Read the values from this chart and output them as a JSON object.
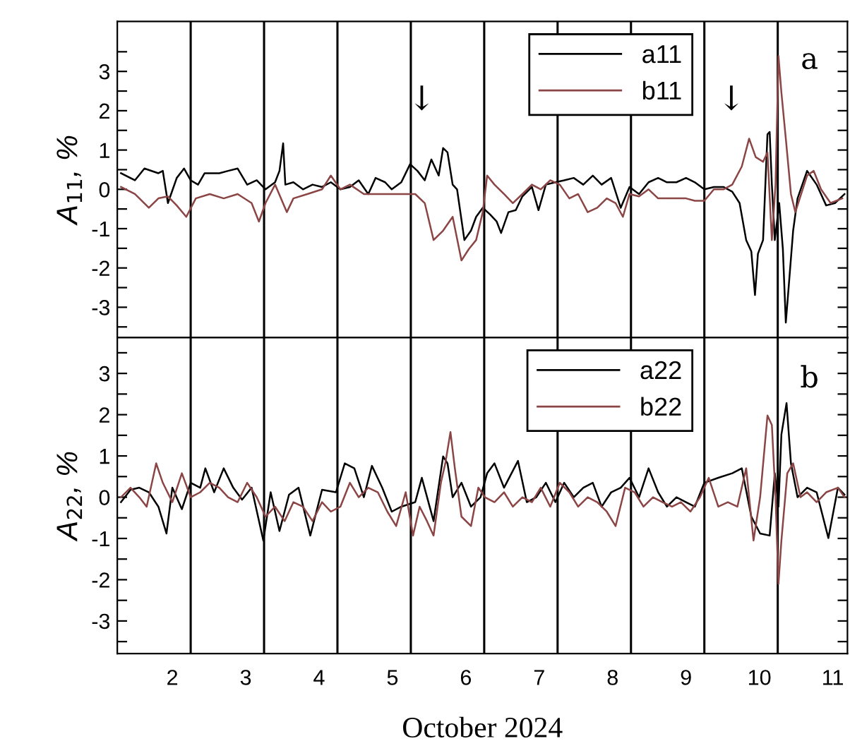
{
  "chart_data": [
    {
      "type": "line",
      "ylabel": "A$_{11}$, %",
      "xlim": [
        1.25,
        11.2
      ],
      "ylim": [
        -3.77,
        4.27
      ],
      "xticks": [
        2,
        3,
        4,
        5,
        6,
        7,
        8,
        9,
        10,
        11
      ],
      "yticks": [
        {
          "value": 3.5,
          "label": null
        },
        3,
        {
          "value": 2.5,
          "label": null
        },
        2,
        {
          "value": 1.5,
          "label": null
        },
        1,
        {
          "value": 0.5,
          "label": null
        },
        0,
        {
          "value": -0.5,
          "label": null
        },
        -1,
        {
          "value": -1.5,
          "label": null
        },
        -2,
        {
          "value": -2.5,
          "label": null
        },
        -3,
        {
          "value": -3.5,
          "label": null
        }
      ],
      "tick_labels": "y",
      "legend": "top right",
      "ref_lines": [
        {
          "axis": "x",
          "value": 2.25,
          "color": "#000000"
        },
        {
          "axis": "x",
          "value": 3.25,
          "color": "#000000"
        },
        {
          "axis": "x",
          "value": 4.25,
          "color": "#000000"
        },
        {
          "axis": "x",
          "value": 5.25,
          "color": "#000000"
        },
        {
          "axis": "x",
          "value": 6.25,
          "color": "#000000"
        },
        {
          "axis": "x",
          "value": 7.25,
          "color": "#000000"
        },
        {
          "axis": "x",
          "value": 8.25,
          "color": "#000000"
        },
        {
          "axis": "x",
          "value": 9.25,
          "color": "#000000"
        },
        {
          "axis": "x",
          "value": 10.25,
          "color": "#000000"
        }
      ],
      "annotations": [
        "↓",
        "↓",
        "a"
      ],
      "series": [
        {
          "name": "a11",
          "color": "#000000",
          "x": [
            1.3,
            1.49,
            1.62,
            1.81,
            1.87,
            1.94,
            2.06,
            2.16,
            2.25,
            2.35,
            2.44,
            2.64,
            2.76,
            2.89,
            3.02,
            3.15,
            3.27,
            3.4,
            3.46,
            3.51,
            3.54,
            3.65,
            3.78,
            3.91,
            4.04,
            4.16,
            4.29,
            4.42,
            4.54,
            4.67,
            4.77,
            4.9,
            4.99,
            5.12,
            5.24,
            5.34,
            5.44,
            5.53,
            5.63,
            5.69,
            5.75,
            5.82,
            5.88,
            5.98,
            6.07,
            6.14,
            6.23,
            6.33,
            6.42,
            6.48,
            6.58,
            6.68,
            6.77,
            6.9,
            6.99,
            7.09,
            7.22,
            7.34,
            7.47,
            7.6,
            7.73,
            7.85,
            7.98,
            8.11,
            8.23,
            8.36,
            8.49,
            8.62,
            8.74,
            8.87,
            9.0,
            9.12,
            9.25,
            9.38,
            9.51,
            9.63,
            9.73,
            9.82,
            9.89,
            9.94,
            9.98,
            10.05,
            10.11,
            10.14,
            10.17,
            10.21,
            10.27,
            10.32,
            10.36,
            10.4,
            10.46,
            10.52,
            10.65,
            10.78,
            10.91,
            11.03,
            11.16
          ],
          "values": [
            0.41,
            0.23,
            0.53,
            0.41,
            0.47,
            -0.35,
            0.29,
            0.53,
            0.23,
            0.12,
            0.41,
            0.41,
            0.47,
            0.53,
            0.12,
            0.23,
            0,
            0.18,
            0.47,
            1.17,
            0.12,
            0.18,
            0,
            0.12,
            0.06,
            0.18,
            0,
            0.06,
            0.23,
            -0.12,
            0.29,
            0.18,
            0,
            0.18,
            0.64,
            0.47,
            0.23,
            0.76,
            0.35,
            1.05,
            0.94,
            0.12,
            0,
            -1.29,
            -1.05,
            -0.7,
            -0.47,
            -0.64,
            -0.82,
            -1.11,
            -0.58,
            -0.53,
            -0.18,
            0.06,
            -0.53,
            0.12,
            0.18,
            0.23,
            0.29,
            0.12,
            0.35,
            0.12,
            0.29,
            -0.47,
            0.06,
            -0.12,
            0.18,
            0.29,
            0.18,
            0.18,
            0.29,
            0.18,
            0,
            0.06,
            0.06,
            -0.06,
            -0.35,
            -1.29,
            -1.58,
            -2.69,
            -1.64,
            -1.29,
            1.4,
            1.46,
            0.12,
            -1.29,
            -0.35,
            -1.52,
            -3.39,
            -2.46,
            -1.05,
            -0.23,
            0.47,
            0.12,
            -0.41,
            -0.35,
            -0.12
          ]
        },
        {
          "name": "b11",
          "color": "#8b4545",
          "x": [
            1.3,
            1.49,
            1.68,
            1.81,
            1.94,
            2.06,
            2.19,
            2.32,
            2.51,
            2.7,
            2.89,
            3.08,
            3.18,
            3.27,
            3.4,
            3.56,
            3.65,
            3.84,
            4.04,
            4.16,
            4.29,
            4.42,
            4.61,
            4.8,
            4.99,
            5.18,
            5.31,
            5.44,
            5.56,
            5.69,
            5.82,
            5.94,
            6.04,
            6.14,
            6.23,
            6.29,
            6.39,
            6.52,
            6.64,
            6.77,
            6.9,
            7.02,
            7.15,
            7.28,
            7.41,
            7.53,
            7.66,
            7.79,
            7.92,
            8.04,
            8.14,
            8.23,
            8.36,
            8.49,
            8.62,
            8.74,
            8.87,
            9.0,
            9.12,
            9.25,
            9.38,
            9.51,
            9.63,
            9.76,
            9.86,
            9.95,
            10.05,
            10.11,
            10.17,
            10.22,
            10.26,
            10.3,
            10.36,
            10.43,
            10.49,
            10.55,
            10.65,
            10.74,
            10.84,
            10.97,
            11.13
          ],
          "values": [
            0.06,
            -0.12,
            -0.47,
            -0.23,
            -0.18,
            -0.41,
            -0.7,
            -0.23,
            -0.12,
            -0.23,
            -0.12,
            -0.35,
            -0.82,
            -0.35,
            0.12,
            -0.58,
            -0.23,
            -0.12,
            0,
            0.35,
            0,
            0.12,
            -0.12,
            -0.12,
            -0.12,
            -0.12,
            -0.12,
            -0.35,
            -1.29,
            -1.05,
            -0.7,
            -1.81,
            -1.52,
            -1.29,
            -0.58,
            0.35,
            0.12,
            -0.12,
            -0.35,
            -0.12,
            0.12,
            0,
            0.23,
            0.12,
            -0.23,
            -0.12,
            -0.58,
            -0.47,
            -0.23,
            -0.35,
            -0.7,
            -0.12,
            -0.18,
            0,
            -0.23,
            -0.23,
            -0.23,
            -0.23,
            -0.29,
            -0.29,
            0,
            0,
            0.12,
            0.58,
            1.29,
            0.82,
            0.7,
            0.94,
            -1.29,
            0.12,
            3.39,
            2.46,
            1.29,
            -0.12,
            -0.58,
            -0.23,
            0.35,
            0.47,
            0,
            -0.35,
            -0.23
          ]
        }
      ]
    },
    {
      "type": "line",
      "ylabel": "A$_{22}$, %",
      "xlabel": "October 2024",
      "xlim": [
        1.25,
        11.2
      ],
      "ylim": [
        -3.79,
        3.87
      ],
      "xticks": [
        2,
        3,
        4,
        5,
        6,
        7,
        8,
        9,
        10,
        11
      ],
      "yticks": [
        {
          "value": 3.5,
          "label": null
        },
        3,
        {
          "value": 2.5,
          "label": null
        },
        2,
        {
          "value": 1.5,
          "label": null
        },
        1,
        {
          "value": 0.5,
          "label": null
        },
        0,
        {
          "value": -0.5,
          "label": null
        },
        -1,
        {
          "value": -1.5,
          "label": null
        },
        -2,
        {
          "value": -2.5,
          "label": null
        },
        -3,
        {
          "value": -3.5,
          "label": null
        }
      ],
      "legend": "top right",
      "ref_lines": [
        {
          "axis": "x",
          "value": 2.25,
          "color": "#000000"
        },
        {
          "axis": "x",
          "value": 3.25,
          "color": "#000000"
        },
        {
          "axis": "x",
          "value": 4.25,
          "color": "#000000"
        },
        {
          "axis": "x",
          "value": 5.25,
          "color": "#000000"
        },
        {
          "axis": "x",
          "value": 6.25,
          "color": "#000000"
        },
        {
          "axis": "x",
          "value": 7.25,
          "color": "#000000"
        },
        {
          "axis": "x",
          "value": 8.25,
          "color": "#000000"
        },
        {
          "axis": "x",
          "value": 9.25,
          "color": "#000000"
        },
        {
          "axis": "x",
          "value": 10.25,
          "color": "#000000"
        }
      ],
      "annotations": [
        "b"
      ],
      "series": [
        {
          "name": "a22",
          "color": "#000000",
          "x": [
            1.3,
            1.43,
            1.55,
            1.68,
            1.81,
            1.92,
            2.0,
            2.13,
            2.25,
            2.38,
            2.45,
            2.57,
            2.7,
            2.83,
            2.95,
            3.08,
            3.24,
            3.34,
            3.46,
            3.59,
            3.72,
            3.88,
            4.04,
            4.23,
            4.35,
            4.48,
            4.61,
            4.72,
            4.86,
            4.99,
            5.12,
            5.31,
            5.4,
            5.56,
            5.69,
            5.75,
            5.82,
            5.94,
            6.07,
            6.2,
            6.29,
            6.39,
            6.52,
            6.71,
            6.83,
            6.96,
            7.09,
            7.22,
            7.34,
            7.47,
            7.6,
            7.73,
            7.85,
            7.98,
            8.11,
            8.23,
            8.36,
            8.49,
            8.62,
            8.74,
            8.87,
            9.0,
            9.12,
            9.25,
            9.44,
            9.63,
            9.76,
            9.89,
            10.01,
            10.14,
            10.21,
            10.26,
            10.3,
            10.37,
            10.43,
            10.52,
            10.65,
            10.78,
            10.94,
            11.07,
            11.16
          ],
          "values": [
            -0.12,
            0.18,
            0.23,
            0.12,
            -0.23,
            -0.88,
            0.23,
            -0.29,
            0.35,
            0.23,
            0.7,
            0.12,
            0.7,
            0.23,
            -0.06,
            0.23,
            -1.05,
            0.12,
            -0.82,
            0.06,
            0.23,
            -0.93,
            0.18,
            0.12,
            0.82,
            0.7,
            0,
            0.76,
            0.23,
            -0.35,
            -0.23,
            -0.12,
            0.47,
            -0.58,
            0.99,
            0.82,
            0,
            0.35,
            -0.23,
            0,
            0.58,
            0.82,
            0.23,
            0.88,
            -0.12,
            0,
            0.35,
            -0.12,
            0.35,
            0,
            0.23,
            0.35,
            -0.23,
            0.12,
            0.23,
            0.47,
            0,
            0.7,
            0.12,
            -0.23,
            0,
            -0.12,
            -0.23,
            0.35,
            0.47,
            0.58,
            0.7,
            -0.47,
            -0.88,
            -0.93,
            0.58,
            -0.23,
            1.52,
            2.28,
            0.82,
            0,
            0.23,
            0.12,
            -0.99,
            0.23,
            0.06
          ]
        },
        {
          "name": "b22",
          "color": "#8b4545",
          "x": [
            1.3,
            1.43,
            1.55,
            1.65,
            1.78,
            1.87,
            2.0,
            2.13,
            2.25,
            2.38,
            2.51,
            2.64,
            2.76,
            2.89,
            3.02,
            3.15,
            3.27,
            3.4,
            3.53,
            3.65,
            3.78,
            3.91,
            4.04,
            4.16,
            4.29,
            4.42,
            4.54,
            4.67,
            4.8,
            4.93,
            5.05,
            5.18,
            5.28,
            5.37,
            5.47,
            5.56,
            5.66,
            5.72,
            5.79,
            5.85,
            5.94,
            6.07,
            6.17,
            6.26,
            6.39,
            6.52,
            6.64,
            6.77,
            6.9,
            7.02,
            7.15,
            7.28,
            7.41,
            7.53,
            7.66,
            7.79,
            7.92,
            8.04,
            8.17,
            8.3,
            8.42,
            8.55,
            8.68,
            8.81,
            8.93,
            9.06,
            9.19,
            9.31,
            9.44,
            9.57,
            9.7,
            9.82,
            9.92,
            10.01,
            10.11,
            10.17,
            10.22,
            10.26,
            10.3,
            10.38,
            10.46,
            10.56,
            10.65,
            10.78,
            10.91,
            11.07,
            11.16
          ],
          "values": [
            0,
            0.23,
            0,
            -0.23,
            0.82,
            0.35,
            -0.12,
            0.58,
            0,
            0.12,
            0.35,
            0.23,
            0,
            -0.12,
            0.35,
            0,
            -0.47,
            -0.23,
            -0.58,
            -0.12,
            -0.23,
            -0.58,
            -0.12,
            -0.35,
            -0.23,
            0.35,
            0,
            0.23,
            0.12,
            -0.35,
            -0.7,
            0.12,
            -0.93,
            -0.23,
            -0.58,
            -0.93,
            0.35,
            0.82,
            1.58,
            0.7,
            -0.47,
            -0.7,
            0.23,
            0,
            -0.12,
            0.12,
            -0.23,
            0,
            -0.12,
            0.23,
            -0.23,
            0.35,
            0.12,
            -0.23,
            0,
            -0.12,
            -0.35,
            -0.7,
            0.23,
            0.12,
            -0.23,
            0,
            -0.12,
            -0.23,
            -0.12,
            -0.35,
            0,
            0.47,
            -0.23,
            -0.12,
            -0.23,
            0.7,
            -1.05,
            0,
            1.98,
            1.75,
            0,
            -2.1,
            -1.05,
            0.58,
            0.82,
            0,
            0.12,
            -0.12,
            0.12,
            0.23,
            0
          ]
        }
      ]
    }
  ]
}
